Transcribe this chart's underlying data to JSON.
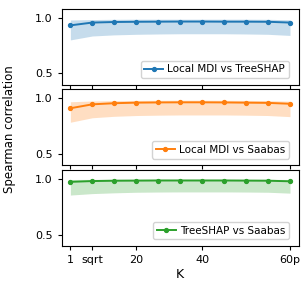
{
  "x_positions": [
    0,
    1,
    2,
    3,
    4,
    5,
    6,
    7,
    8,
    9,
    10
  ],
  "x_tick_positions": [
    0,
    1,
    3,
    6,
    10
  ],
  "x_tick_labels": [
    "1",
    "sqrt",
    "20",
    "40",
    "60p"
  ],
  "xlabel": "K",
  "ylabel": "Spearman correlation",
  "panels": [
    {
      "label": "Local MDI vs TreeSHAP",
      "color": "#1f77b4",
      "mean": [
        0.93,
        0.955,
        0.96,
        0.962,
        0.963,
        0.964,
        0.964,
        0.963,
        0.963,
        0.962,
        0.955
      ],
      "lower": [
        0.8,
        0.835,
        0.845,
        0.85,
        0.853,
        0.855,
        0.855,
        0.855,
        0.853,
        0.85,
        0.84
      ],
      "upper": [
        0.978,
        0.982,
        0.984,
        0.985,
        0.985,
        0.985,
        0.985,
        0.985,
        0.985,
        0.984,
        0.98
      ]
    },
    {
      "label": "Local MDI vs Saabas",
      "color": "#ff7f0e",
      "mean": [
        0.91,
        0.945,
        0.955,
        0.96,
        0.962,
        0.963,
        0.963,
        0.962,
        0.96,
        0.958,
        0.95
      ],
      "lower": [
        0.785,
        0.825,
        0.838,
        0.845,
        0.848,
        0.85,
        0.85,
        0.85,
        0.848,
        0.845,
        0.835
      ],
      "upper": [
        0.968,
        0.975,
        0.978,
        0.98,
        0.981,
        0.982,
        0.982,
        0.981,
        0.98,
        0.978,
        0.973
      ]
    },
    {
      "label": "TreeSHAP vs Saabas",
      "color": "#2ca02c",
      "mean": [
        0.973,
        0.98,
        0.983,
        0.984,
        0.985,
        0.985,
        0.985,
        0.985,
        0.984,
        0.983,
        0.978
      ],
      "lower": [
        0.855,
        0.868,
        0.875,
        0.88,
        0.882,
        0.883,
        0.883,
        0.883,
        0.882,
        0.88,
        0.872
      ],
      "upper": [
        0.994,
        0.995,
        0.996,
        0.996,
        0.997,
        0.997,
        0.997,
        0.997,
        0.996,
        0.996,
        0.994
      ]
    }
  ],
  "ylim": [
    0.4,
    1.08
  ],
  "yticks": [
    0.5,
    1.0
  ],
  "fill_alpha": 0.25
}
